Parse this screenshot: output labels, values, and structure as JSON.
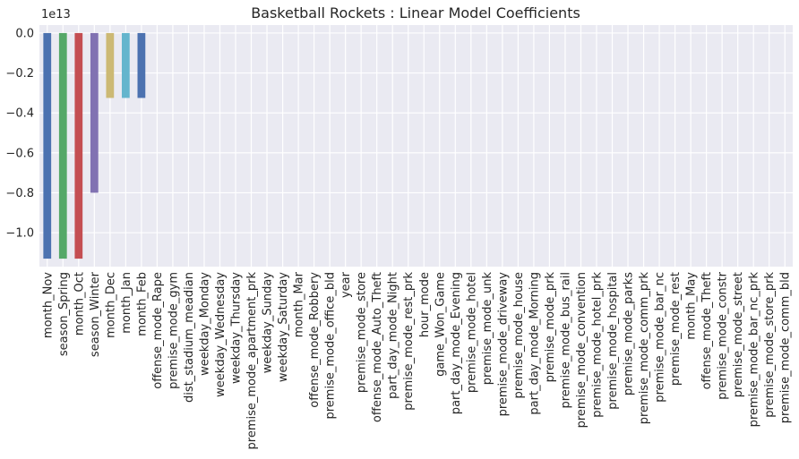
{
  "chart_data": {
    "type": "bar",
    "title": "Basketball Rockets : Linear Model Coefficients",
    "offset_label": "1e13",
    "ylim": [
      -1.17,
      0.04
    ],
    "yticks": [
      0.0,
      -0.2,
      -0.4,
      -0.6,
      -0.8,
      -1.0
    ],
    "ytick_labels": [
      "0.0",
      "−0.2",
      "−0.4",
      "−0.6",
      "−0.8",
      "−1.0"
    ],
    "grid": true,
    "background_color": "#eaeaf2",
    "colors": [
      "#4c72b0",
      "#55a868",
      "#c44e52",
      "#8172b2",
      "#ccb974",
      "#64b5cd"
    ],
    "categories": [
      "month_Nov",
      "season_Spring",
      "month_Oct",
      "season_Winter",
      "month_Dec",
      "month_Jan",
      "month_Feb",
      "offense_mode_Rape",
      "premise_mode_gym",
      "dist_stadium_meadian",
      "weekday_Monday",
      "weekday_Wednesday",
      "weekday_Thursday",
      "premise_mode_apartment_prk",
      "weekday_Sunday",
      "weekday_Saturday",
      "month_Mar",
      "offense_mode_Robbery",
      "premise_mode_office_bld",
      "year",
      "premise_mode_store",
      "offense_mode_Auto_Theft",
      "part_day_mode_Night",
      "premise_mode_rest_prk",
      "hour_mode",
      "game_Won_Game",
      "part_day_mode_Evening",
      "premise_mode_hotel",
      "premise_mode_unk",
      "premise_mode_driveway",
      "premise_mode_house",
      "part_day_mode_Morning",
      "premise_mode_prk",
      "premise_mode_bus_rail",
      "premise_mode_convention",
      "premise_mode_hotel_prk",
      "premise_mode_hospital",
      "premise_mode_parks",
      "premise_mode_comm_prk",
      "premise_mode_bar_nc",
      "premise_mode_rest",
      "month_May",
      "offense_mode_Theft",
      "premise_mode_constr",
      "premise_mode_street",
      "premise_mode_bar_nc_prk",
      "premise_mode_store_prk",
      "premise_mode_comm_bld"
    ],
    "values": [
      -1.13,
      -1.13,
      -1.13,
      -0.8,
      -0.325,
      -0.325,
      -0.325,
      0,
      0,
      0,
      0,
      0,
      0,
      0,
      0,
      0,
      0,
      0,
      0,
      0,
      0,
      0,
      0,
      0,
      0,
      0,
      0,
      0,
      0,
      0,
      0,
      0,
      0,
      0,
      0,
      0,
      0,
      0,
      0,
      0,
      0,
      0,
      0,
      0,
      0,
      0,
      0,
      0
    ]
  }
}
